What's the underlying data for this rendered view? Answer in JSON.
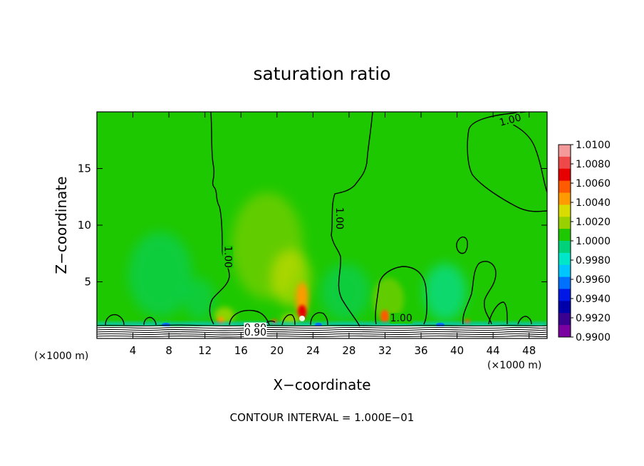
{
  "chart_data": {
    "type": "heatmap",
    "title": "saturation ratio",
    "xlabel": "X−coordinate",
    "ylabel": "Z−coordinate",
    "x_unit": "(×1000 m)",
    "y_unit": "(×1000 m)",
    "xlim": [
      0,
      50
    ],
    "ylim": [
      0,
      20
    ],
    "x_ticks": [
      4,
      8,
      12,
      16,
      20,
      24,
      28,
      32,
      36,
      40,
      44,
      48
    ],
    "y_ticks": [
      5,
      10,
      15
    ],
    "colorbar": {
      "range": [
        0.99,
        1.01
      ],
      "labels": [
        "1.0100",
        "1.0080",
        "1.0060",
        "1.0040",
        "1.0020",
        "1.0000",
        "0.9980",
        "0.9960",
        "0.9940",
        "0.9920",
        "0.9900"
      ],
      "colors": [
        "#f59a9a",
        "#ee4848",
        "#e60000",
        "#ff5a00",
        "#ff9a00",
        "#d8dc00",
        "#99d100",
        "#1ec800",
        "#00d27a",
        "#00e6c8",
        "#00c6ff",
        "#0070ff",
        "#0018e6",
        "#0000aa",
        "#3a0090",
        "#7a00a0"
      ]
    },
    "background_value": 1.0,
    "contour_labels": [
      {
        "text": "1.00",
        "x": 46.0,
        "y": 19.0
      },
      {
        "text": "1.00",
        "x": 14.2,
        "y": 7.2
      },
      {
        "text": "1.00",
        "x": 26.6,
        "y": 10.6
      },
      {
        "text": "1.00",
        "x": 33.8,
        "y": 1.5
      },
      {
        "text": "0.80",
        "x": 17.6,
        "y": 0.65
      },
      {
        "text": "0.90",
        "x": 17.6,
        "y": 0.25
      }
    ],
    "annotation": "CONTOUR INTERVAL = 1.000E−01"
  }
}
